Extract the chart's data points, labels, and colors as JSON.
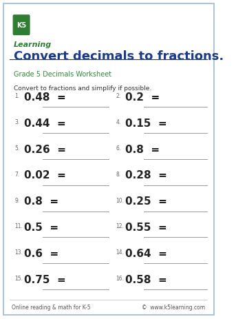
{
  "title": "Convert decimals to fractions.",
  "subtitle": "Grade 5 Decimals Worksheet",
  "instruction": "Convert to fractions and simplify if possible.",
  "problems": [
    {
      "num": "1.",
      "val": "0.48"
    },
    {
      "num": "2.",
      "val": "0.2"
    },
    {
      "num": "3.",
      "val": "0.44"
    },
    {
      "num": "4.",
      "val": "0.15"
    },
    {
      "num": "5.",
      "val": "0.26"
    },
    {
      "num": "6.",
      "val": "0.8"
    },
    {
      "num": "7.",
      "val": "0.02"
    },
    {
      "num": "8.",
      "val": "0.28"
    },
    {
      "num": "9.",
      "val": "0.8"
    },
    {
      "num": "10.",
      "val": "0.25"
    },
    {
      "num": "11.",
      "val": "0.5"
    },
    {
      "num": "12.",
      "val": "0.55"
    },
    {
      "num": "13.",
      "val": "0.6"
    },
    {
      "num": "14.",
      "val": "0.64"
    },
    {
      "num": "15.",
      "val": "0.75"
    },
    {
      "num": "16.",
      "val": "0.58"
    }
  ],
  "footer_left": "Online reading & math for K-5",
  "footer_right": "©  www.k5learning.com",
  "bg_color": "#ffffff",
  "border_color": "#b0c4d8",
  "title_color": "#1a3a8c",
  "subtitle_color": "#2e8b3a",
  "instruction_color": "#333333",
  "problem_color": "#222222",
  "number_color": "#666666",
  "line_color": "#999999",
  "footer_color": "#555555",
  "title_fontsize": 13,
  "subtitle_fontsize": 7,
  "instruction_fontsize": 6.5,
  "problem_fontsize": 11,
  "number_fontsize": 5.5,
  "footer_fontsize": 5.5
}
